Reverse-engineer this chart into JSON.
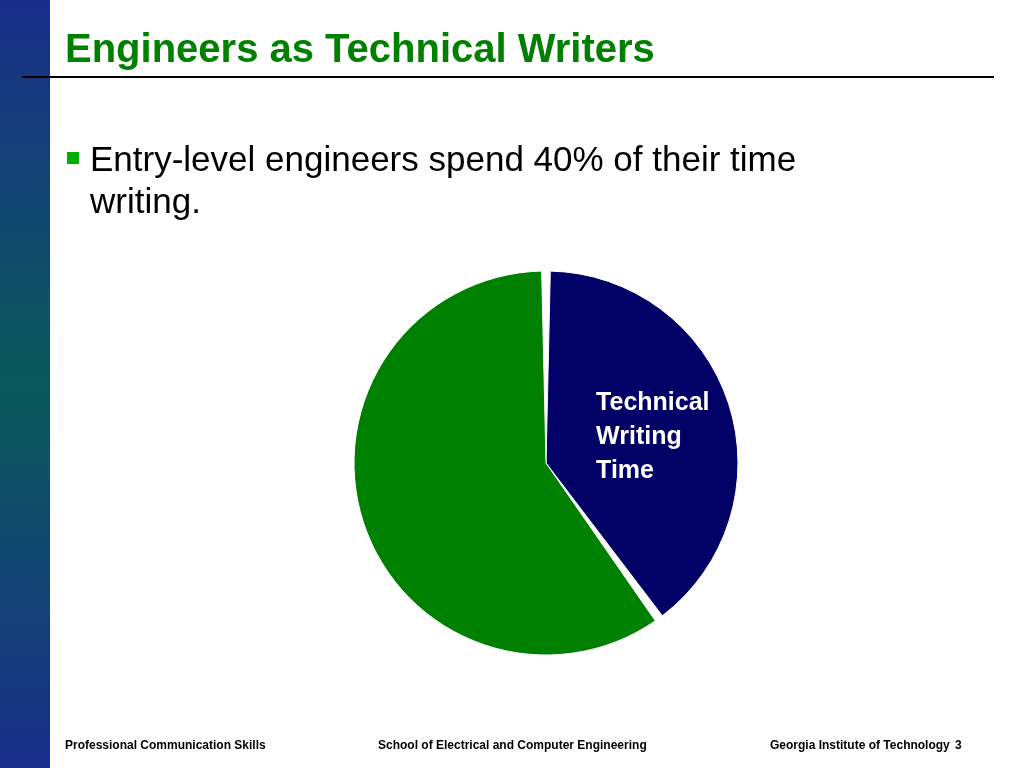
{
  "chart_data": {
    "type": "pie",
    "title": "Engineers as Technical Writers",
    "subtitle": "Entry-level engineers spend 40% of their time writing.",
    "categories": [
      "Technical Writing Time",
      null
    ],
    "values": [
      40,
      60
    ],
    "colors": [
      "#000066",
      "#008000"
    ],
    "legend": false,
    "annotations": [
      "Professional Communication Skills",
      "School of Electrical and Computer Engineering",
      "Georgia Institute of Technology",
      "3"
    ]
  }
}
